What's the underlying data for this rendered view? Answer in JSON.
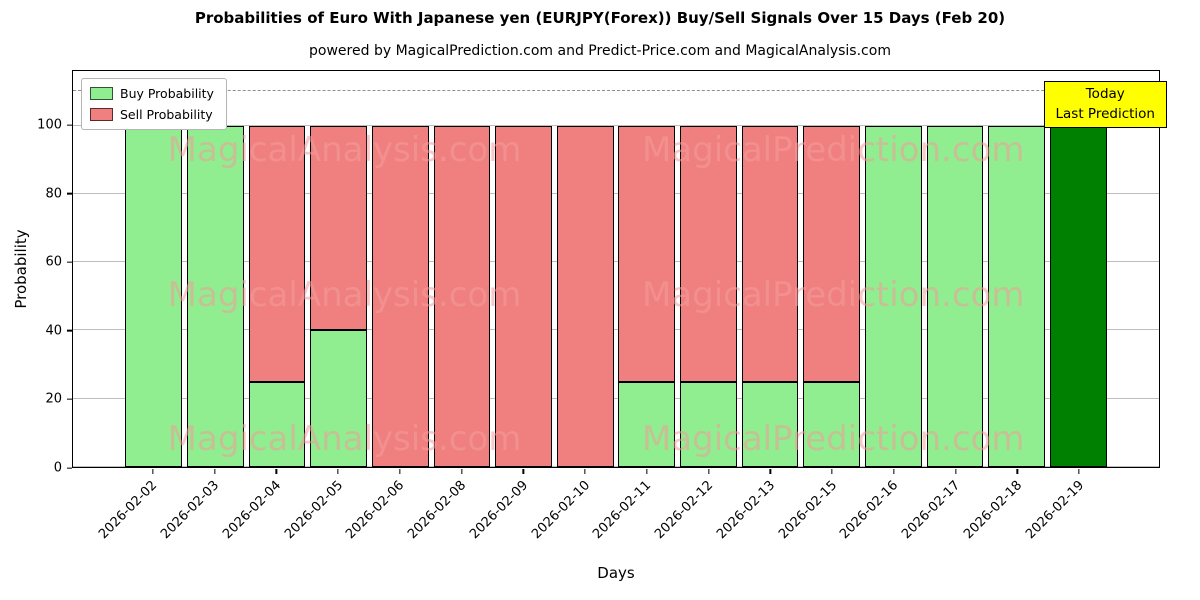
{
  "title": "Probabilities of Euro With Japanese yen (EURJPY(Forex)) Buy/Sell Signals Over 15 Days (Feb 20)",
  "subtitle": "powered by MagicalPrediction.com and Predict-Price.com and MagicalAnalysis.com",
  "chart_data": {
    "type": "bar",
    "stacked": true,
    "xlabel": "Days",
    "ylabel": "Probability",
    "ylim": [
      0,
      116
    ],
    "yticks": [
      0,
      20,
      40,
      60,
      80,
      100
    ],
    "threshold_line_y": 110,
    "grid": true,
    "legend_position": "top-left",
    "categories": [
      "2026-02-02",
      "2026-02-03",
      "2026-02-04",
      "2026-02-05",
      "2026-02-06",
      "2026-02-08",
      "2026-02-09",
      "2026-02-10",
      "2026-02-11",
      "2026-02-12",
      "2026-02-13",
      "2026-02-15",
      "2026-02-16",
      "2026-02-17",
      "2026-02-18",
      "2026-02-19"
    ],
    "series": [
      {
        "name": "Buy Probability",
        "color": "#90ee90",
        "values": [
          100,
          100,
          25,
          40,
          0,
          0,
          0,
          0,
          25,
          25,
          25,
          25,
          100,
          100,
          100,
          100
        ]
      },
      {
        "name": "Sell Probability",
        "color": "#f08080",
        "values": [
          0,
          0,
          75,
          60,
          100,
          100,
          100,
          100,
          75,
          75,
          75,
          75,
          0,
          0,
          0,
          0
        ]
      }
    ],
    "today_bar": {
      "category": "2026-02-19",
      "index": 15,
      "color": "#008000"
    },
    "annotation": {
      "line1": "Today",
      "line2": "Last Prediction",
      "bg_color": "#ffff00"
    },
    "watermarks": [
      "MagicalAnalysis.com",
      "MagicalPrediction.com"
    ],
    "colors": {
      "buy": "#90ee90",
      "sell": "#f08080",
      "today": "#008000",
      "grid": "#bdbdbd",
      "edge": "#000000"
    }
  }
}
